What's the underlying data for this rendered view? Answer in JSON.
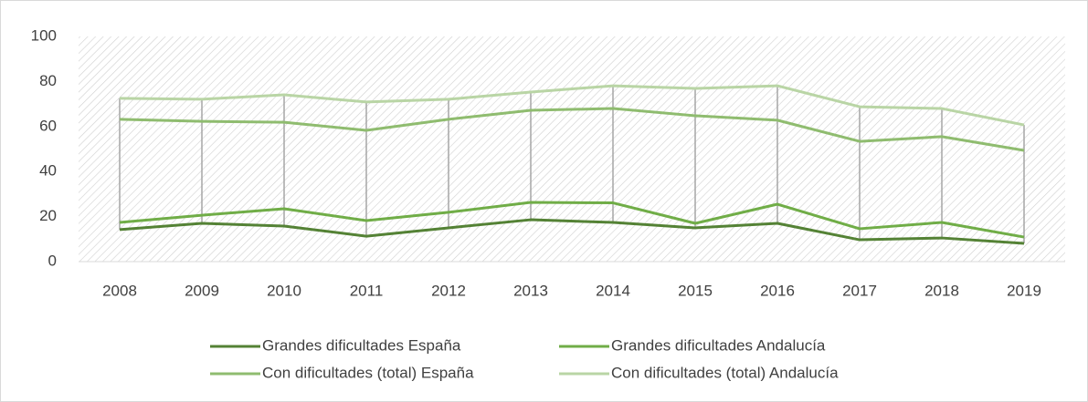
{
  "chart_data": {
    "type": "line",
    "categories": [
      "2008",
      "2009",
      "2010",
      "2011",
      "2012",
      "2013",
      "2014",
      "2015",
      "2016",
      "2017",
      "2018",
      "2019"
    ],
    "series": [
      {
        "name": "Grandes dificultades España",
        "color": "#548235",
        "values": [
          14.2,
          17.0,
          15.8,
          11.3,
          15.0,
          18.6,
          17.4,
          15.0,
          17.0,
          9.7,
          10.5,
          8.1
        ]
      },
      {
        "name": "Grandes dificultades Andalucía",
        "color": "#70ad47",
        "values": [
          17.4,
          20.6,
          23.5,
          18.2,
          21.9,
          26.3,
          26.1,
          17.0,
          25.5,
          14.6,
          17.4,
          10.9
        ]
      },
      {
        "name": "Con dificultades (total) España",
        "color": "#8fbc6f",
        "values": [
          63.2,
          62.3,
          61.9,
          58.3,
          63.2,
          67.2,
          68.0,
          64.8,
          62.8,
          53.4,
          55.5,
          49.4
        ]
      },
      {
        "name": "Con dificultades (total) Andalucía",
        "color": "#b9d5a5",
        "values": [
          72.5,
          72.1,
          74.1,
          70.9,
          72.1,
          75.3,
          78.1,
          76.9,
          78.1,
          68.8,
          68.0,
          60.7
        ]
      }
    ],
    "ylim": [
      0,
      100
    ],
    "yticks": [
      0,
      20,
      40,
      60,
      80,
      100
    ],
    "high_low_lines": true
  }
}
